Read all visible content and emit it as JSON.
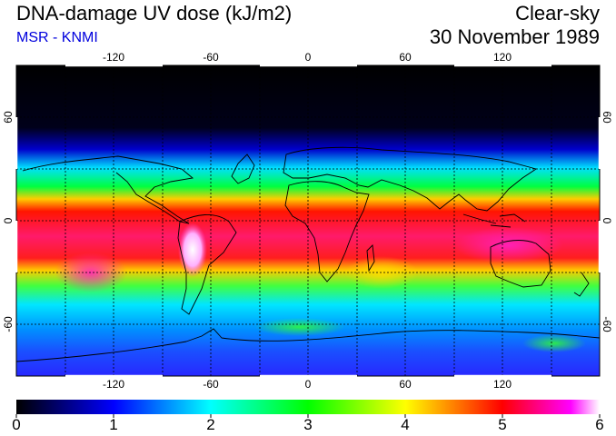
{
  "title": "DNA-damage UV dose (kJ/m2)",
  "subtitle": "MSR - KNMI",
  "sky_condition": "Clear-sky",
  "date": "30 November 1989",
  "map": {
    "lon_range": [
      -180,
      180
    ],
    "lat_range": [
      -90,
      90
    ],
    "lon_ticks": [
      -120,
      -60,
      0,
      60,
      120
    ],
    "lon_tick_labels": [
      "-120",
      "-60",
      "0",
      "60",
      "120"
    ],
    "lat_ticks": [
      60,
      0,
      -60
    ],
    "lat_tick_labels": [
      "60",
      "0",
      "-60"
    ],
    "gridlines": "dashed",
    "gridline_lons": [
      -150,
      -120,
      -90,
      -60,
      -30,
      0,
      30,
      60,
      90,
      120,
      150
    ],
    "gridline_lats": [
      60,
      30,
      0,
      -30,
      -60
    ]
  },
  "colorbar": {
    "min": 0,
    "max": 6,
    "labels": [
      "0",
      "1",
      "2",
      "3",
      "4",
      "5",
      "6"
    ],
    "colors": [
      "#000000",
      "#0000ff",
      "#00ffff",
      "#00ff00",
      "#ffff00",
      "#ff0000",
      "#ff00ff",
      "#ffffff"
    ]
  }
}
